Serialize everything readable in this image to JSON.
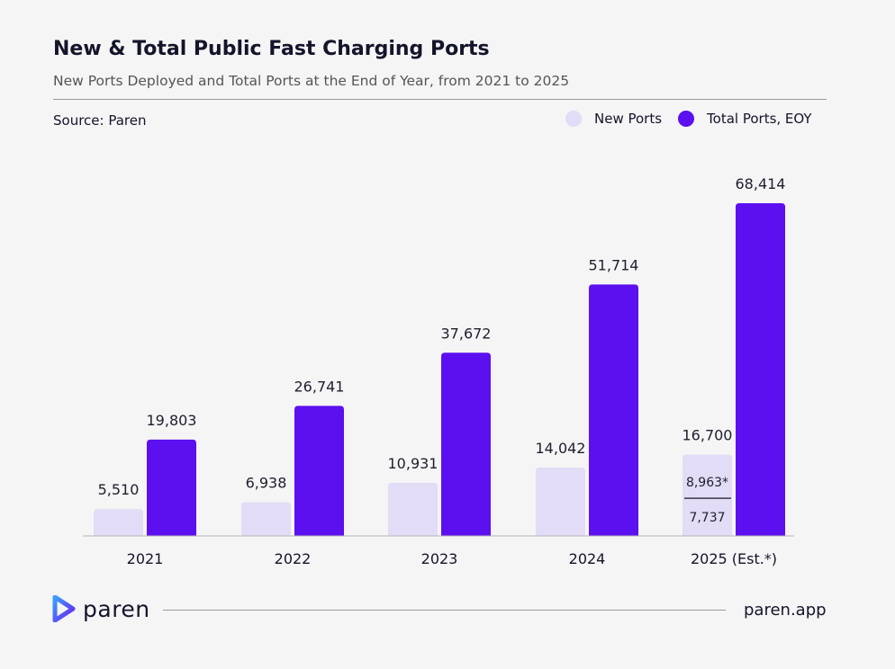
{
  "header": {
    "title": "New & Total Public Fast Charging Ports",
    "subtitle": "New Ports Deployed and Total Ports at the End of Year, from 2021 to 2025",
    "source": "Source: Paren"
  },
  "legend": [
    {
      "label": "New Ports",
      "color": "#e2dcf6"
    },
    {
      "label": "Total Ports, EOY",
      "color": "#5c10ef"
    }
  ],
  "chart_data": {
    "type": "bar",
    "title": "New & Total Public Fast Charging Ports",
    "subtitle": "New Ports Deployed and Total Ports at the End of Year, from 2021 to 2025",
    "categories": [
      "2021",
      "2022",
      "2023",
      "2024",
      "2025 (Est.*)"
    ],
    "series": [
      {
        "name": "New Ports",
        "values": [
          5510,
          6938,
          10931,
          14042,
          16700
        ],
        "labels": [
          "5,510",
          "6,938",
          "10,931",
          "14,042",
          "16,700"
        ],
        "color": "#e2dcf6"
      },
      {
        "name": "Total Ports, EOY",
        "values": [
          19803,
          26741,
          37672,
          51714,
          68414
        ],
        "labels": [
          "19,803",
          "26,741",
          "37,672",
          "51,714",
          "68,414"
        ],
        "color": "#5c10ef"
      }
    ],
    "annotations": {
      "category": "2025 (Est.*)",
      "split": [
        {
          "label": "8,963*",
          "value": 8963
        },
        {
          "label": "7,737",
          "value": 7737
        }
      ]
    },
    "ylim": [
      0,
      70000
    ],
    "grid": false,
    "legend_position": "top-right"
  },
  "footer": {
    "logo_text": "paren",
    "logo_icon": "paren-logo-icon",
    "site": "paren.app"
  }
}
